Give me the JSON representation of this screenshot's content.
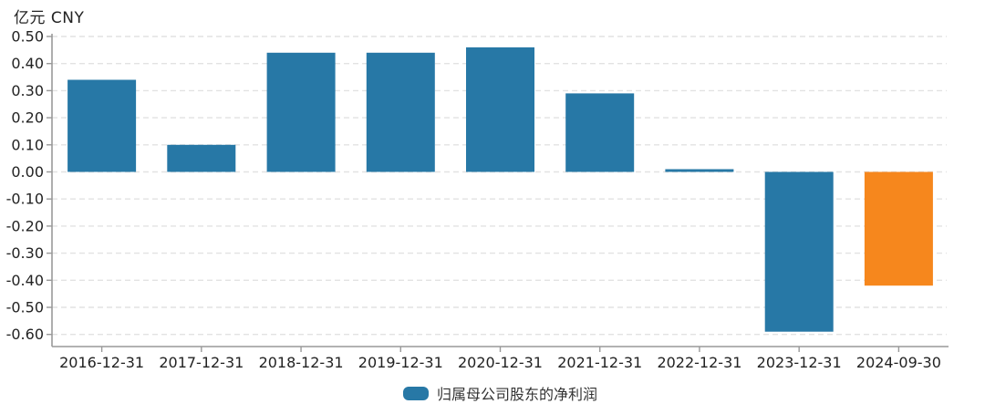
{
  "chart": {
    "unit_label": "亿元 CNY"
  },
  "legend": {
    "items": [
      {
        "label": "归属母公司股东的净利润",
        "color": "#2778A6"
      }
    ]
  },
  "chart_data": {
    "type": "bar",
    "title": "亿元 CNY",
    "xlabel": "",
    "ylabel": "亿元 CNY",
    "categories": [
      "2016-12-31",
      "2017-12-31",
      "2018-12-31",
      "2019-12-31",
      "2020-12-31",
      "2021-12-31",
      "2022-12-31",
      "2023-12-31",
      "2024-09-30"
    ],
    "series": [
      {
        "name": "归属母公司股东的净利润",
        "values": [
          0.34,
          0.1,
          0.44,
          0.44,
          0.46,
          0.29,
          0.01,
          -0.59,
          -0.42
        ]
      }
    ],
    "bar_colors": [
      "#2778A6",
      "#2778A6",
      "#2778A6",
      "#2778A6",
      "#2778A6",
      "#2778A6",
      "#2778A6",
      "#2778A6",
      "#F6871D"
    ],
    "ylim": [
      -0.6,
      0.5
    ],
    "ytick_step": 0.1,
    "ytick_labels": [
      "0.50",
      "0.40",
      "0.30",
      "0.20",
      "0.10",
      "0.00",
      "-0.10",
      "-0.20",
      "-0.30",
      "-0.40",
      "-0.50",
      "-0.60"
    ],
    "grid": "horizontal-dashed",
    "legend_position": "bottom-center",
    "colors": {
      "bar_primary": "#2778A6",
      "bar_highlight": "#F6871D",
      "gridline": "#E2E2E2",
      "axis": "#999999",
      "tick_label": "#222222"
    }
  }
}
